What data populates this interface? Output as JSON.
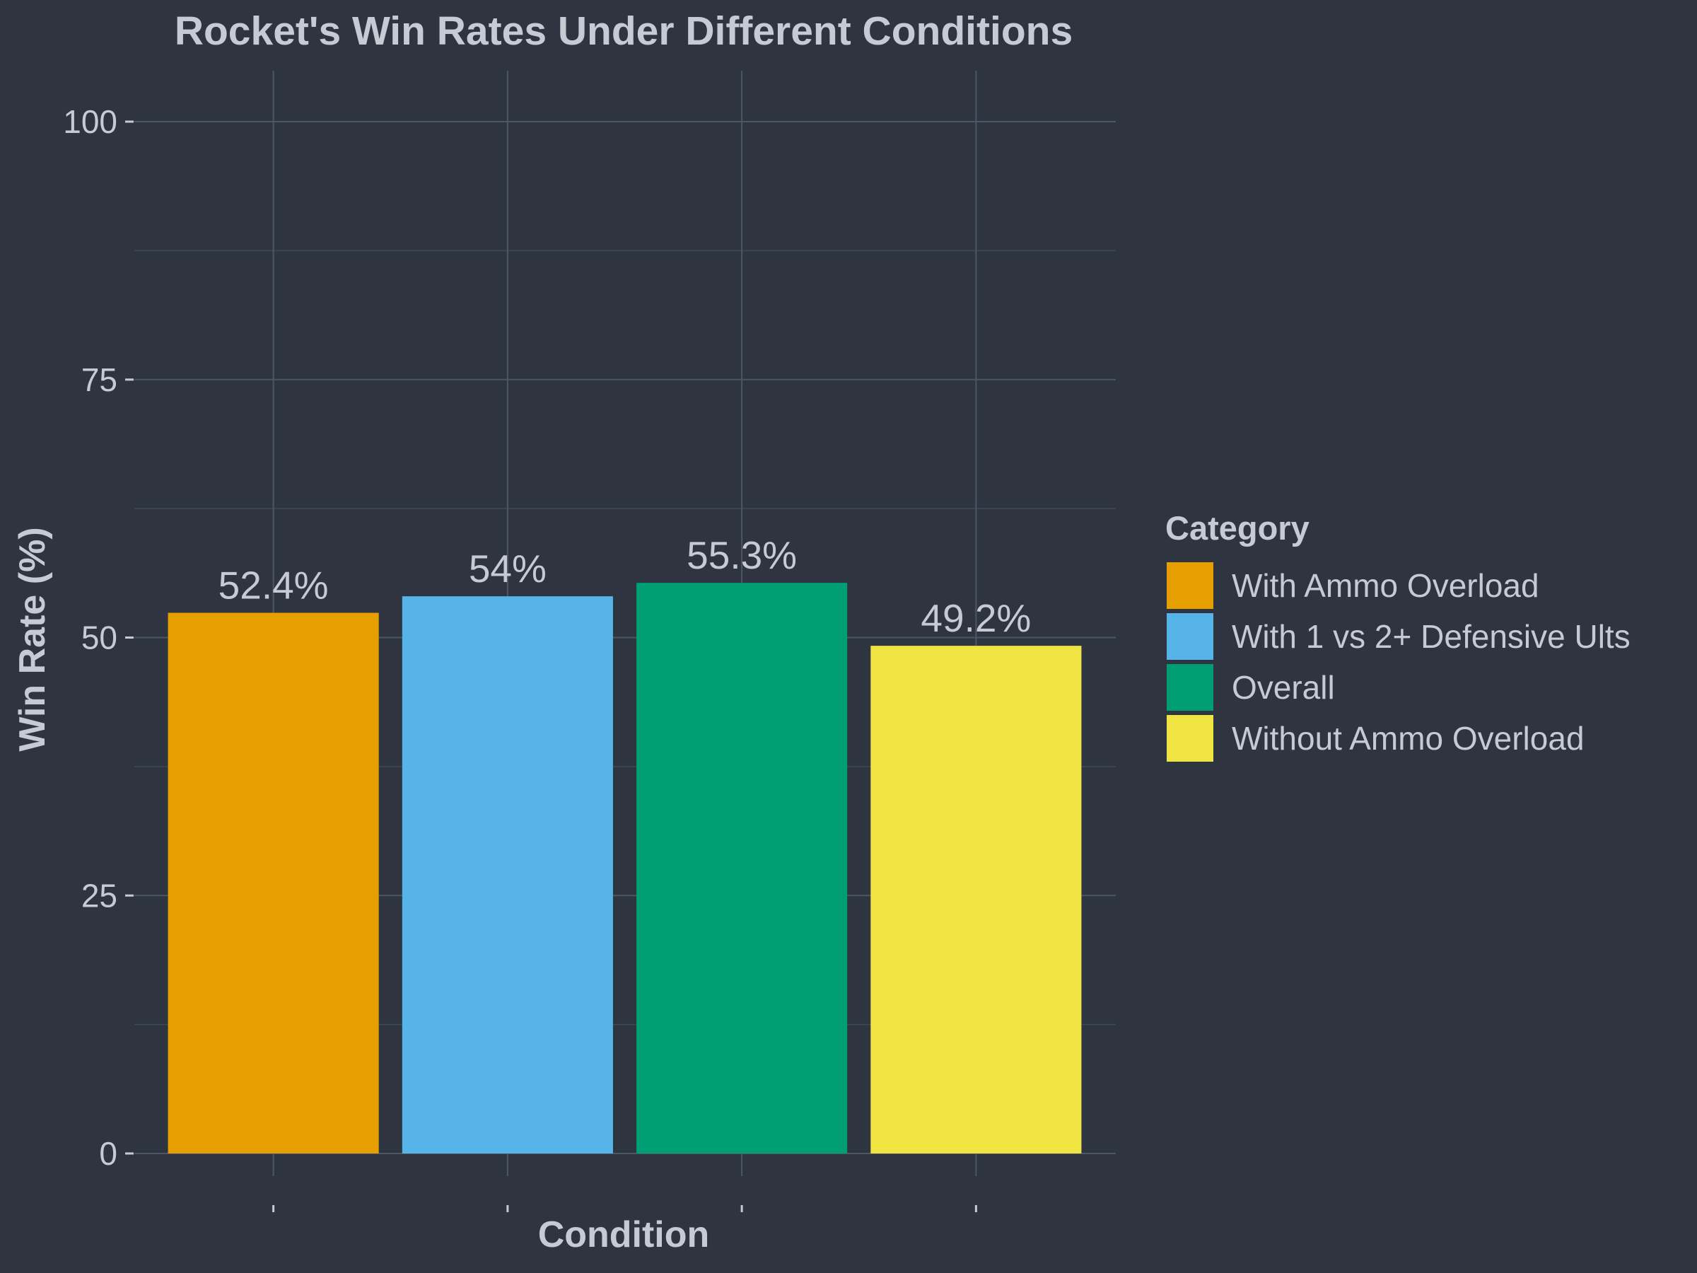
{
  "chart_data": {
    "type": "bar",
    "title": "Rocket's Win Rates Under Different Conditions",
    "xlabel": "Condition",
    "ylabel": "Win Rate (%)",
    "ylim": [
      0,
      105
    ],
    "yticks": [
      0,
      25,
      50,
      75,
      100
    ],
    "ytick_labels": [
      "0",
      "25",
      "50",
      "75",
      "100"
    ],
    "grid": true,
    "legend": {
      "title": "Category",
      "placement": "right"
    },
    "categories": [
      "With Ammo Overload",
      "With 1 vs 2+ Defensive Ults",
      "Overall",
      "Without Ammo Overload"
    ],
    "values": [
      52.4,
      54,
      55.3,
      49.2
    ],
    "data_labels": [
      "52.4%",
      "54%",
      "55.3%",
      "49.2%"
    ],
    "colors": [
      "#e69f00",
      "#56b4e9",
      "#009e73",
      "#f0e442"
    ]
  },
  "theme": {
    "background": "#2e3440",
    "text_color": "#c5cad3",
    "grid_major": "#4f5663",
    "grid_minor": "#414856"
  }
}
